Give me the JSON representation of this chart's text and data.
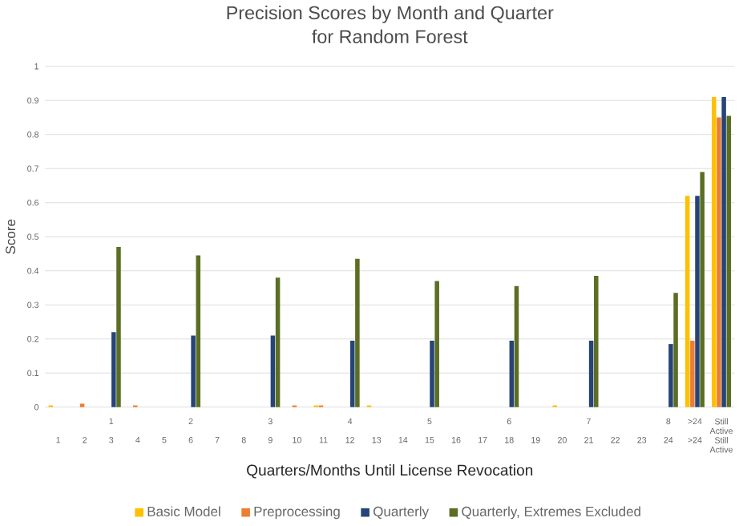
{
  "chart_data": {
    "type": "bar",
    "title": "Precision Scores by Month and Quarter\nfor Random Forest",
    "xlabel": "Quarters/Months  Until License Revocation",
    "ylabel": "Score",
    "categories": [
      "1",
      "2",
      "3",
      "4",
      "5",
      "6",
      "7",
      "8",
      "9",
      "10",
      "11",
      "12",
      "13",
      "14",
      "15",
      "16",
      "17",
      "18",
      "19",
      "20",
      "21",
      "22",
      "23",
      "24",
      ">24",
      "Still Active"
    ],
    "series": [
      {
        "name": "Basic Model",
        "color": "#ffc000",
        "values": [
          0.005,
          null,
          null,
          null,
          null,
          null,
          null,
          null,
          null,
          null,
          0.005,
          null,
          0.005,
          null,
          null,
          null,
          null,
          null,
          null,
          0.005,
          null,
          null,
          null,
          null,
          0.62,
          0.91
        ]
      },
      {
        "name": "Preprocessing",
        "color": "#ed7d31",
        "values": [
          null,
          0.01,
          null,
          0.005,
          null,
          null,
          null,
          null,
          null,
          0.005,
          0.005,
          null,
          null,
          null,
          null,
          null,
          null,
          null,
          null,
          null,
          null,
          null,
          null,
          null,
          0.195,
          0.85
        ]
      },
      {
        "name": "Quarterly",
        "color": "#264478",
        "values": [
          null,
          null,
          0.22,
          null,
          null,
          0.21,
          null,
          null,
          0.21,
          null,
          null,
          0.195,
          null,
          null,
          0.195,
          null,
          null,
          0.195,
          null,
          null,
          0.195,
          null,
          null,
          0.185,
          0.62,
          0.91
        ]
      },
      {
        "name": "Quarterly, Extremes Excluded",
        "color": "#5b6e23",
        "values": [
          null,
          null,
          0.47,
          null,
          null,
          0.445,
          null,
          null,
          0.38,
          null,
          null,
          0.435,
          null,
          null,
          0.37,
          null,
          null,
          0.355,
          null,
          null,
          0.385,
          null,
          null,
          0.335,
          0.69,
          0.855
        ]
      }
    ],
    "ylim": [
      0,
      1
    ],
    "yticks": [
      0,
      0.1,
      0.2,
      0.3,
      0.4,
      0.5,
      0.6,
      0.7,
      0.8,
      0.9,
      1
    ],
    "grid": "y",
    "legend": "bottom",
    "annotations": [
      "1",
      "2",
      "3",
      "4",
      "5",
      "6",
      "7",
      "8",
      ">24",
      "Still Active"
    ]
  }
}
